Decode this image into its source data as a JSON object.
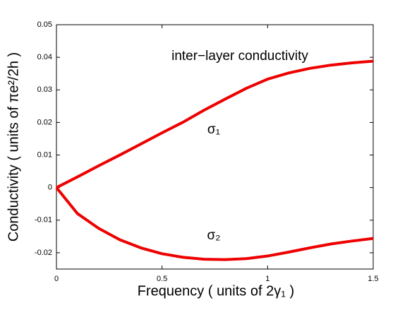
{
  "chart_data": {
    "type": "line",
    "xlabel": "Frequency  ( units of 2γ₁ )",
    "ylabel": "Conductivity ( units of  πe²/2h )",
    "annotations": [
      "inter−layer conductivity",
      "σ₁",
      "σ₂"
    ],
    "x": [
      0,
      0.1,
      0.2,
      0.3,
      0.4,
      0.5,
      0.6,
      0.7,
      0.8,
      0.9,
      1.0,
      1.1,
      1.2,
      1.3,
      1.4,
      1.5
    ],
    "series": [
      {
        "color": "#ee0000",
        "values": [
          0,
          0.0033,
          0.0067,
          0.01,
          0.0134,
          0.0168,
          0.0201,
          0.0238,
          0.0272,
          0.0305,
          0.0333,
          0.0352,
          0.0366,
          0.0376,
          0.0383,
          0.0388
        ]
      },
      {
        "color": "#ee0000",
        "values": [
          0,
          -0.008,
          -0.0125,
          -0.016,
          -0.0185,
          -0.0203,
          -0.0214,
          -0.022,
          -0.0221,
          -0.0218,
          -0.021,
          -0.0198,
          -0.0185,
          -0.0173,
          -0.0164,
          -0.0156
        ]
      }
    ],
    "xlim": [
      0,
      1.5
    ],
    "xticks": [
      0,
      0.5,
      1,
      1.5
    ],
    "ylim": [
      -0.025,
      0.05
    ],
    "yticks": [
      -0.02,
      -0.01,
      0,
      0.01,
      0.02,
      0.03,
      0.04,
      0.05
    ],
    "grid": false
  }
}
